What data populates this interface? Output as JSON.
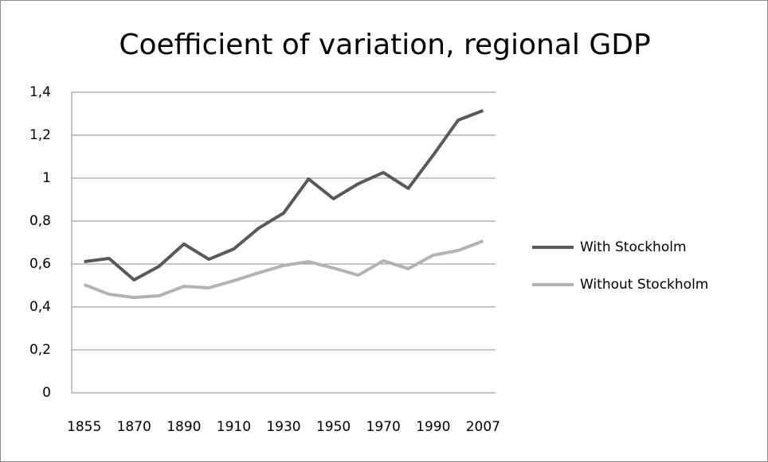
{
  "chart_data": {
    "type": "line",
    "title": "Coefficient of variation, regional GDP",
    "categories": [
      "1855",
      null,
      "1870",
      null,
      "1890",
      null,
      "1910",
      null,
      "1930",
      null,
      "1950",
      null,
      "1970",
      null,
      "1990",
      null,
      "2007"
    ],
    "series": [
      {
        "name": "With Stockholm",
        "color": "#595959",
        "values": [
          0.611,
          0.626,
          0.526,
          0.589,
          0.693,
          0.622,
          0.67,
          0.767,
          0.837,
          0.996,
          0.904,
          0.974,
          1.026,
          0.952,
          1.107,
          1.27,
          1.315
        ]
      },
      {
        "name": "Without Stockholm",
        "color": "#b3b3b3",
        "values": [
          0.504,
          0.459,
          0.444,
          0.452,
          0.496,
          0.489,
          0.522,
          0.559,
          0.593,
          0.611,
          0.581,
          0.548,
          0.615,
          0.578,
          0.641,
          0.663,
          0.707
        ]
      }
    ],
    "ylim": [
      0,
      1.4
    ],
    "yticks": [
      0,
      {
        "value": 0.2,
        "label": "0,2"
      },
      {
        "value": 0.4,
        "label": "0,4"
      },
      {
        "value": 0.6,
        "label": "0,6"
      },
      {
        "value": 0.8,
        "label": "0,8"
      },
      1,
      {
        "value": 1.2,
        "label": "1,2"
      },
      {
        "value": 1.4,
        "label": "1,4"
      }
    ],
    "grid": true,
    "legend": "right"
  }
}
